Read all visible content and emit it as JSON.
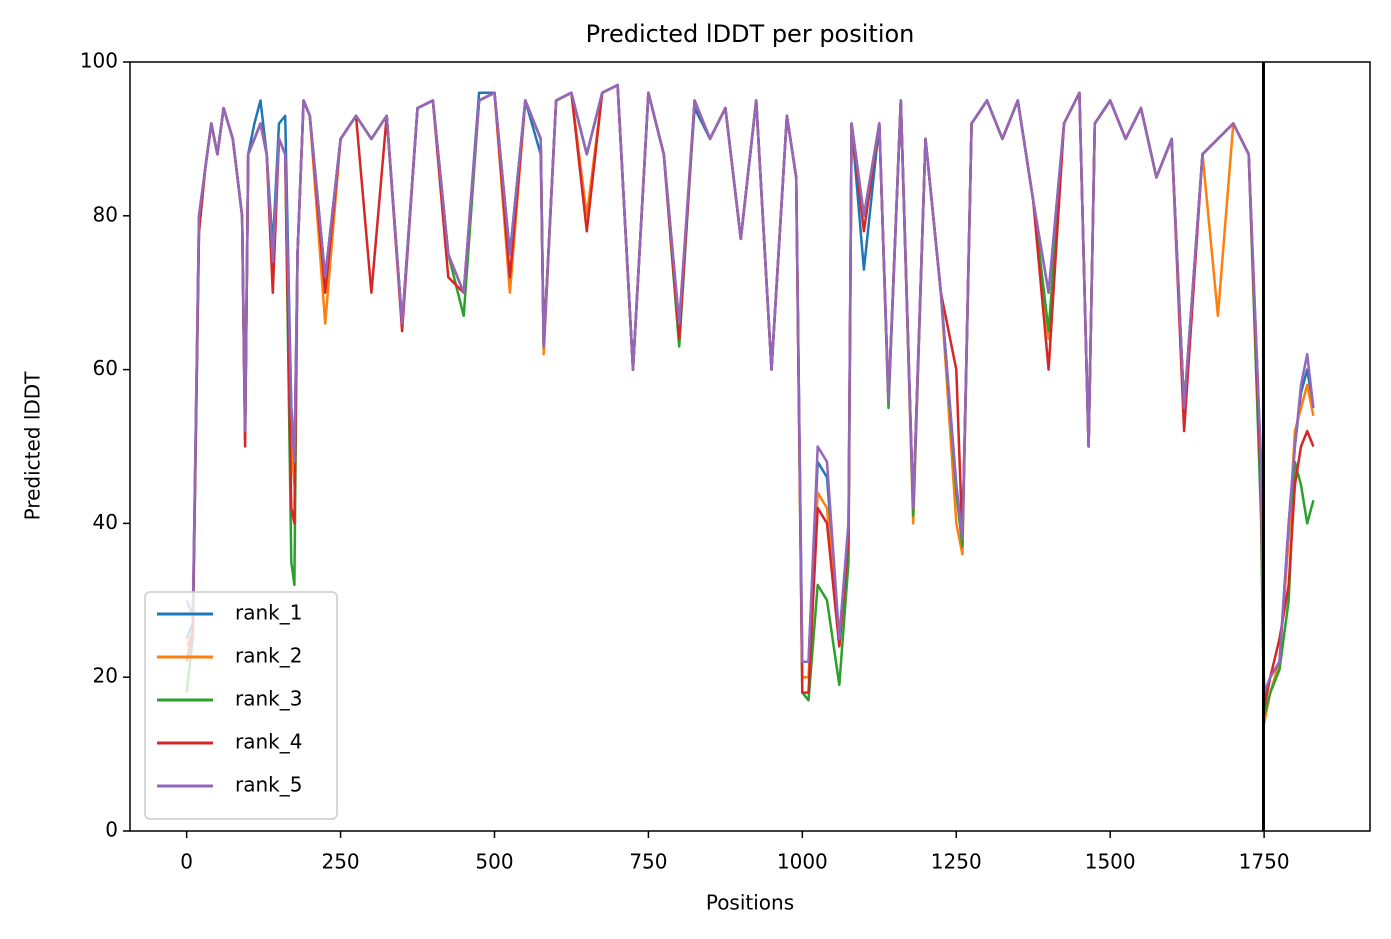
{
  "chart_data": {
    "type": "line",
    "title": "Predicted lDDT per position",
    "x_label": "Positions",
    "y_label": "Predicted lDDT",
    "xlim": [
      -92,
      1922
    ],
    "ylim": [
      0,
      100
    ],
    "xticks": [
      0,
      250,
      500,
      750,
      1000,
      1250,
      1500,
      1750
    ],
    "yticks": [
      0,
      20,
      40,
      60,
      80,
      100
    ],
    "legend": "lower left",
    "vline": 1749,
    "vline_color": "#000000",
    "x": [
      0,
      10,
      20,
      30,
      40,
      50,
      60,
      75,
      90,
      95,
      100,
      110,
      120,
      130,
      140,
      150,
      160,
      170,
      175,
      180,
      190,
      200,
      225,
      250,
      275,
      300,
      325,
      350,
      375,
      400,
      425,
      450,
      475,
      500,
      525,
      550,
      575,
      580,
      600,
      625,
      650,
      675,
      700,
      725,
      750,
      775,
      800,
      825,
      850,
      875,
      900,
      925,
      950,
      975,
      990,
      1000,
      1010,
      1025,
      1040,
      1060,
      1075,
      1080,
      1100,
      1125,
      1140,
      1160,
      1180,
      1200,
      1225,
      1250,
      1260,
      1275,
      1300,
      1325,
      1350,
      1375,
      1400,
      1425,
      1450,
      1465,
      1475,
      1500,
      1525,
      1550,
      1575,
      1600,
      1620,
      1650,
      1675,
      1700,
      1725,
      1745,
      1750,
      1760,
      1775,
      1790,
      1800,
      1810,
      1820,
      1830
    ],
    "series": [
      {
        "name": "rank_1",
        "color": "#1f77b4",
        "values": [
          25,
          27,
          80,
          86,
          92,
          88,
          94,
          90,
          80,
          52,
          88,
          92,
          95,
          88,
          76,
          92,
          93,
          55,
          48,
          75,
          95,
          93,
          72,
          90,
          93,
          90,
          93,
          66,
          94,
          95,
          75,
          70,
          96,
          96,
          75,
          95,
          88,
          63,
          95,
          96,
          88,
          96,
          97,
          60,
          96,
          88,
          66,
          94,
          90,
          94,
          77,
          95,
          60,
          93,
          85,
          22,
          22,
          48,
          46,
          25,
          40,
          92,
          73,
          92,
          56,
          95,
          42,
          90,
          70,
          45,
          38,
          92,
          95,
          90,
          95,
          82,
          70,
          92,
          96,
          50,
          92,
          95,
          90,
          94,
          85,
          90,
          55,
          88,
          90,
          92,
          88,
          48,
          17,
          20,
          22,
          40,
          50,
          57,
          60,
          55
        ]
      },
      {
        "name": "rank_2",
        "color": "#ff7f0e",
        "values": [
          24,
          26,
          80,
          86,
          92,
          88,
          94,
          90,
          80,
          52,
          88,
          90,
          92,
          88,
          74,
          90,
          88,
          50,
          45,
          75,
          95,
          93,
          66,
          90,
          93,
          90,
          93,
          66,
          94,
          95,
          75,
          70,
          95,
          96,
          70,
          95,
          90,
          62,
          95,
          96,
          80,
          96,
          97,
          60,
          96,
          88,
          66,
          95,
          90,
          94,
          77,
          95,
          60,
          93,
          85,
          20,
          20,
          44,
          42,
          24,
          38,
          92,
          80,
          92,
          56,
          95,
          40,
          90,
          70,
          40,
          36,
          92,
          95,
          90,
          95,
          82,
          64,
          92,
          96,
          50,
          92,
          95,
          90,
          94,
          85,
          90,
          55,
          88,
          67,
          92,
          88,
          47,
          14,
          18,
          22,
          38,
          52,
          55,
          58,
          54
        ]
      },
      {
        "name": "rank_3",
        "color": "#2ca02c",
        "values": [
          18,
          25,
          78,
          86,
          92,
          88,
          94,
          90,
          80,
          51,
          88,
          90,
          92,
          88,
          74,
          90,
          88,
          35,
          32,
          75,
          95,
          93,
          72,
          90,
          93,
          90,
          93,
          66,
          94,
          95,
          75,
          67,
          95,
          96,
          75,
          95,
          90,
          63,
          95,
          96,
          88,
          96,
          97,
          60,
          96,
          88,
          63,
          95,
          90,
          94,
          77,
          95,
          60,
          93,
          85,
          18,
          17,
          32,
          30,
          19,
          35,
          92,
          80,
          92,
          55,
          95,
          41,
          90,
          70,
          44,
          37,
          92,
          95,
          90,
          95,
          82,
          65,
          92,
          96,
          50,
          92,
          95,
          90,
          94,
          85,
          90,
          55,
          88,
          90,
          92,
          88,
          41,
          15,
          18,
          21,
          30,
          48,
          45,
          40,
          43
        ]
      },
      {
        "name": "rank_4",
        "color": "#d62728",
        "values": [
          22,
          26,
          78,
          86,
          92,
          88,
          94,
          90,
          80,
          50,
          88,
          90,
          92,
          88,
          70,
          90,
          88,
          42,
          40,
          75,
          95,
          93,
          70,
          90,
          93,
          70,
          93,
          65,
          94,
          95,
          72,
          70,
          95,
          96,
          72,
          95,
          90,
          63,
          95,
          96,
          78,
          96,
          97,
          60,
          96,
          88,
          64,
          95,
          90,
          94,
          77,
          95,
          60,
          93,
          85,
          18,
          18,
          42,
          40,
          24,
          38,
          92,
          78,
          92,
          56,
          95,
          42,
          90,
          70,
          60,
          38,
          92,
          95,
          90,
          95,
          82,
          60,
          92,
          96,
          50,
          92,
          95,
          90,
          94,
          85,
          90,
          52,
          88,
          90,
          92,
          88,
          45,
          16,
          20,
          25,
          32,
          45,
          50,
          52,
          50
        ]
      },
      {
        "name": "rank_5",
        "color": "#9467bd",
        "values": [
          30,
          28,
          80,
          86,
          92,
          88,
          94,
          90,
          80,
          52,
          88,
          90,
          92,
          88,
          74,
          90,
          88,
          55,
          48,
          75,
          95,
          93,
          72,
          90,
          93,
          90,
          93,
          66,
          94,
          95,
          75,
          70,
          95,
          96,
          75,
          95,
          90,
          63,
          95,
          96,
          88,
          96,
          97,
          60,
          96,
          88,
          66,
          95,
          90,
          94,
          77,
          95,
          60,
          93,
          85,
          22,
          22,
          50,
          48,
          25,
          40,
          92,
          80,
          92,
          56,
          95,
          42,
          90,
          70,
          45,
          38,
          92,
          95,
          90,
          95,
          82,
          70,
          92,
          96,
          50,
          92,
          95,
          90,
          94,
          85,
          90,
          55,
          88,
          90,
          92,
          88,
          48,
          18,
          20,
          22,
          40,
          50,
          58,
          62,
          55
        ]
      }
    ]
  }
}
